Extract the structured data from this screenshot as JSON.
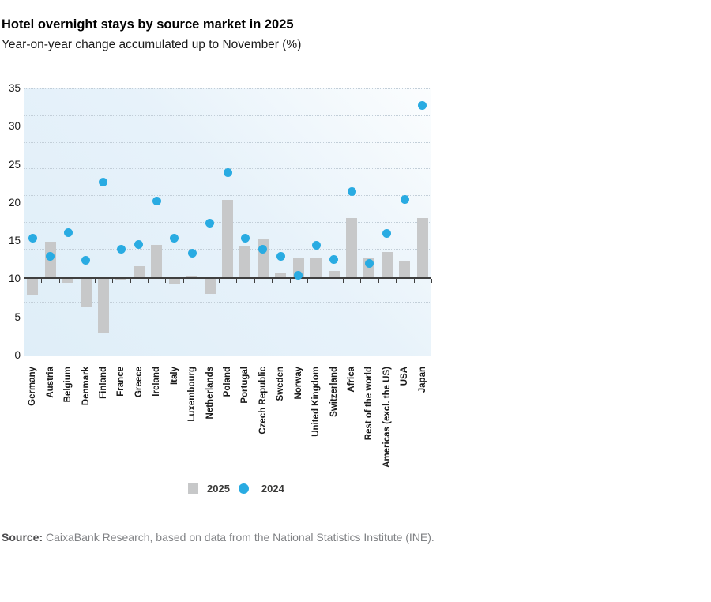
{
  "header": {
    "title": "Hotel overnight stays by source market in 2025",
    "subtitle": "Year-on-year change accumulated up to November (%)"
  },
  "legend": {
    "items": [
      {
        "label": "2025",
        "marker": "square",
        "color": "#c7c8c9"
      },
      {
        "label": "2024",
        "marker": "circle",
        "color": "#29abe2"
      }
    ]
  },
  "source": {
    "prefix": "Source:",
    "text": " CaixaBank Research, based on data from the National Statistics Institute (INE)."
  },
  "chart_data": {
    "type": "bar",
    "overlay_type": "scatter",
    "title": "Hotel overnight stays by source market in 2025",
    "subtitle": "Year-on-year change accumulated up to November (%)",
    "categories": [
      "Germany",
      "Austria",
      "Belgium",
      "Denmark",
      "Finland",
      "France",
      "Greece",
      "Ireland",
      "Italy",
      "Luxembourg",
      "Netherlands",
      "Poland",
      "Portugal",
      "Czech Republic",
      "Sweden",
      "Norway",
      "United Kingdom",
      "Switzerland",
      "Africa",
      "Rest of the world",
      "Americas (excl. the US)",
      "USA",
      "Japan"
    ],
    "series": [
      {
        "name": "2025",
        "type": "bar",
        "color": "#c7c8c9",
        "values": [
          8.0,
          14.9,
          9.5,
          6.3,
          2.9,
          9.8,
          11.7,
          14.5,
          9.3,
          10.5,
          8.1,
          20.4,
          14.3,
          15.2,
          10.8,
          12.7,
          12.8,
          11.1,
          18.0,
          12.8,
          13.6,
          12.4,
          18.0
        ]
      },
      {
        "name": "2024",
        "type": "scatter",
        "color": "#29abe2",
        "values": [
          15.4,
          13.0,
          16.1,
          12.5,
          22.7,
          13.9,
          14.5,
          20.2,
          15.4,
          13.4,
          17.3,
          24.0,
          15.4,
          13.9,
          13.0,
          10.5,
          14.4,
          12.6,
          21.5,
          12.1,
          16.0,
          20.5,
          32.8
        ]
      }
    ],
    "xlabel": "",
    "ylabel": "",
    "ylim": [
      0,
      35
    ],
    "yticks": [
      0,
      5,
      10,
      15,
      20,
      25,
      30,
      35
    ],
    "bar_baseline": 10,
    "grid": "horizontal-dotted",
    "legend_position": "bottom",
    "x_tick_label_rotation": 90,
    "axis_line_color": "#3f3f3f",
    "gridline_color": "#c2ced8",
    "plot_background": [
      "#dfeef8",
      "#fbfdfe"
    ]
  }
}
